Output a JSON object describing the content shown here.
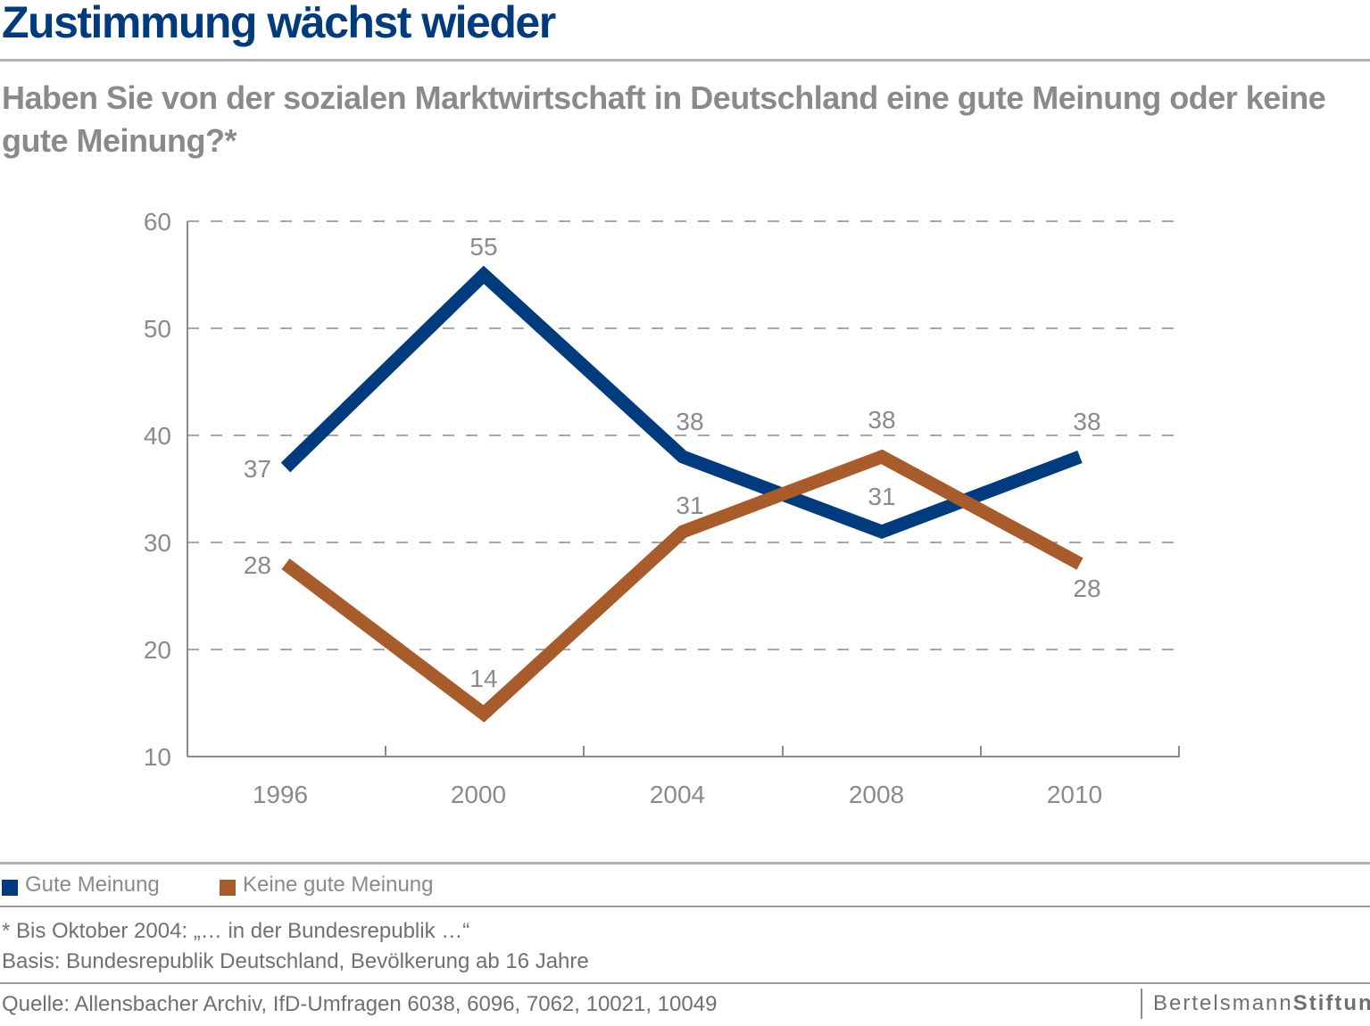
{
  "header": {
    "title": "Zustimmung wächst wieder",
    "subtitle": "Haben Sie von der sozialen Marktwirtschaft in Deutschland eine gute Meinung oder keine gute Meinung?*"
  },
  "chart_data": {
    "type": "line",
    "x": [
      "1996",
      "2000",
      "2004",
      "2008",
      "2010"
    ],
    "series": [
      {
        "name": "Gute Meinung",
        "values": [
          37,
          55,
          38,
          31,
          38
        ],
        "color": "#003c7d"
      },
      {
        "name": "Keine gute Meinung",
        "values": [
          28,
          14,
          31,
          38,
          28
        ],
        "color": "#a95c2b"
      }
    ],
    "yticks": [
      10,
      20,
      30,
      40,
      50,
      60
    ],
    "ylim": [
      10,
      60
    ],
    "grid": "dashed horizontal",
    "legend_position": "bottom"
  },
  "legend": {
    "items": [
      {
        "label": "Gute Meinung",
        "color": "#003c7d"
      },
      {
        "label": "Keine gute Meinung",
        "color": "#a95c2b"
      }
    ]
  },
  "footnotes": {
    "note1": "* Bis Oktober 2004: „… in der Bundesrepublik …“",
    "note2": "Basis: Bundesrepublik Deutschland, Bevölkerung ab 16 Jahre"
  },
  "source": "Quelle: Allensbacher Archiv, IfD-Umfragen 6038, 6096, 7062, 10021, 10049",
  "brand": {
    "part1": "Bertelsmann",
    "part2": "Stiftung"
  }
}
